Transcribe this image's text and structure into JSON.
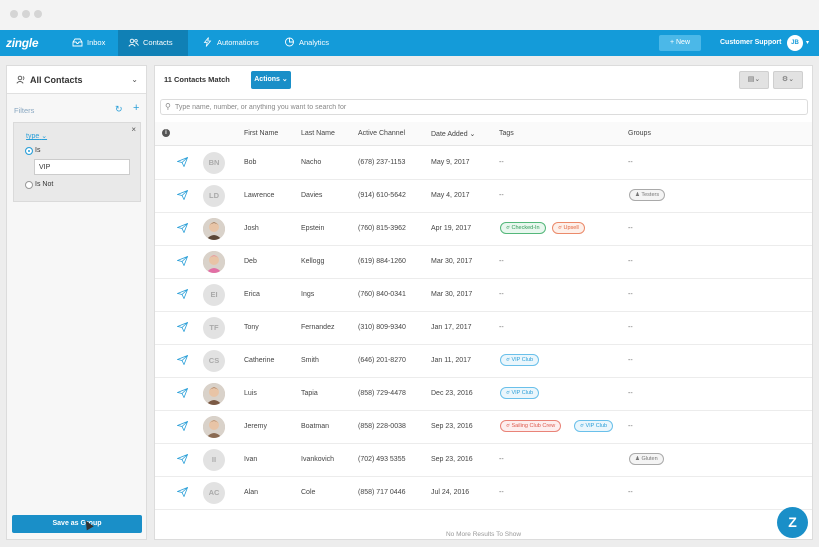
{
  "navbar": {
    "logo": "zingle",
    "items": [
      {
        "label": "Inbox",
        "icon": "inbox-icon"
      },
      {
        "label": "Contacts",
        "icon": "contacts-icon",
        "active": true
      },
      {
        "label": "Automations",
        "icon": "bolt-icon"
      },
      {
        "label": "Analytics",
        "icon": "pie-chart-icon"
      }
    ],
    "new_button": "+ New",
    "account": "Customer Support",
    "avatar_initials": "JB"
  },
  "sidebar": {
    "title": "All Contacts",
    "filters_label": "Filters",
    "filter": {
      "field": "type",
      "option_is": "Is",
      "option_is_not": "Is Not",
      "value": "VIP"
    },
    "save_button": "Save as Group"
  },
  "content": {
    "match_count": "11 Contacts Match",
    "actions_button": "Actions",
    "search_placeholder": "Type name, number, or anything you want to search for",
    "columns": [
      "First Name",
      "Last Name",
      "Active Channel",
      "Date Added",
      "Tags",
      "Groups"
    ],
    "rows": [
      {
        "initials": "BN",
        "first": "Bob",
        "last": "Nacho",
        "channel": "(678) 237-1153",
        "date": "May 9, 2017",
        "tags": [],
        "tags_text": "--",
        "groups": [],
        "groups_text": "--"
      },
      {
        "initials": "LD",
        "first": "Lawrence",
        "last": "Davies",
        "channel": "(914) 610-5642",
        "date": "May 4, 2017",
        "tags": [],
        "tags_text": "--",
        "groups": [
          "Testers"
        ],
        "groups_text": ""
      },
      {
        "initials": "",
        "photo": true,
        "first": "Josh",
        "last": "Epstein",
        "channel": "(760) 815-3962",
        "date": "Apr 19, 2017",
        "tags": [
          {
            "label": "Checked-In",
            "color": "green"
          },
          {
            "label": "Upsell",
            "color": "orange"
          }
        ],
        "tags_text": "",
        "groups": [],
        "groups_text": "--"
      },
      {
        "initials": "",
        "photo": true,
        "first": "Deb",
        "last": "Kellogg",
        "channel": "(619) 884-1260",
        "date": "Mar 30, 2017",
        "tags": [],
        "tags_text": "--",
        "groups": [],
        "groups_text": "--"
      },
      {
        "initials": "EI",
        "first": "Erica",
        "last": "Ings",
        "channel": "(760) 840-0341",
        "date": "Mar 30, 2017",
        "tags": [],
        "tags_text": "--",
        "groups": [],
        "groups_text": "--"
      },
      {
        "initials": "TF",
        "first": "Tony",
        "last": "Fernandez",
        "channel": "(310) 809-9340",
        "date": "Jan 17, 2017",
        "tags": [],
        "tags_text": "--",
        "groups": [],
        "groups_text": "--"
      },
      {
        "initials": "CS",
        "first": "Catherine",
        "last": "Smith",
        "channel": "(646) 201-8270",
        "date": "Jan 11, 2017",
        "tags": [
          {
            "label": "VIP Club",
            "color": "blue"
          }
        ],
        "tags_text": "",
        "groups": [],
        "groups_text": "--"
      },
      {
        "initials": "",
        "photo": true,
        "first": "Luis",
        "last": "Tapia",
        "channel": "(858) 729-4478",
        "date": "Dec 23, 2016",
        "tags": [
          {
            "label": "VIP Club",
            "color": "blue"
          }
        ],
        "tags_text": "",
        "groups": [],
        "groups_text": "--"
      },
      {
        "initials": "",
        "photo": true,
        "first": "Jeremy",
        "last": "Boatman",
        "channel": "(858) 228-0038",
        "date": "Sep 23, 2016",
        "tags": [
          {
            "label": "Sailing Club Crew",
            "color": "red"
          },
          {
            "label": "VIP Club",
            "color": "blue"
          }
        ],
        "tags_text": "",
        "groups": [],
        "groups_text": "--"
      },
      {
        "initials": "II",
        "first": "Ivan",
        "last": "Ivankovich",
        "channel": "(702) 493 5355",
        "date": "Sep 23, 2016",
        "tags": [],
        "tags_text": "--",
        "groups": [
          "Gluten"
        ],
        "groups_text": ""
      },
      {
        "initials": "AC",
        "first": "Alan",
        "last": "Cole",
        "channel": "(858) 717 0446",
        "date": "Jul 24, 2016",
        "tags": [],
        "tags_text": "--",
        "groups": [],
        "groups_text": "--"
      }
    ],
    "footer": "No More Results To Show"
  },
  "help_icon": "Z",
  "colors": {
    "brand": "#149bd9",
    "button": "#1a8fc8",
    "nav_active": "#1080b5"
  }
}
